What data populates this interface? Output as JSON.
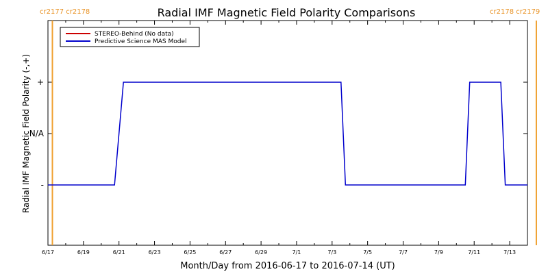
{
  "chart_data": {
    "type": "line",
    "title": "Radial IMF Magnetic Field Polarity Comparisons",
    "xlabel": "Month/Day from 2016-06-17 to 2016-07-14 (UT)",
    "ylabel": "Radial IMF Magnetic Field Polarity (-,+)",
    "x_range": [
      "2016-06-17",
      "2016-07-14"
    ],
    "x_ticks": [
      "6/17",
      "6/19",
      "6/21",
      "6/23",
      "6/25",
      "6/27",
      "6/29",
      "7/1",
      "7/3",
      "7/5",
      "7/7",
      "7/9",
      "7/11",
      "7/13"
    ],
    "y_ticks": [
      "+",
      "N/A",
      "-"
    ],
    "legend_position": "top-left",
    "carrington_labels": {
      "left": "cr2177 cr2178",
      "right": "cr2178 cr2179"
    },
    "carrington_boundaries": [
      "2016-06-17 06:00",
      "2016-07-14 12:00"
    ],
    "series": [
      {
        "name": "STEREO-Behind (No data)",
        "color": "#cc0000",
        "points": []
      },
      {
        "name": "Predictive Science MAS Model",
        "color": "#0000cc",
        "points": [
          [
            "2016-06-17 00:00",
            "-"
          ],
          [
            "2016-06-20 18:00",
            "-"
          ],
          [
            "2016-06-21 06:00",
            "+"
          ],
          [
            "2016-07-03 12:00",
            "+"
          ],
          [
            "2016-07-03 18:00",
            "-"
          ],
          [
            "2016-07-10 12:00",
            "-"
          ],
          [
            "2016-07-10 18:00",
            "+"
          ],
          [
            "2016-07-12 12:00",
            "+"
          ],
          [
            "2016-07-12 18:00",
            "-"
          ],
          [
            "2016-07-14 00:00",
            "-"
          ]
        ]
      }
    ]
  }
}
